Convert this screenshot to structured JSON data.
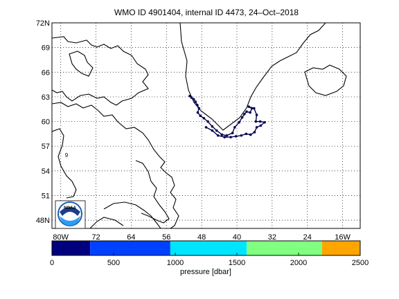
{
  "title": "WMO ID 4901404, internal ID 4473, 24–Oct–2018",
  "map": {
    "lat_ticks": [
      "72N",
      "69",
      "66",
      "63",
      "60",
      "57",
      "54",
      "51",
      "48N"
    ],
    "lon_ticks": [
      "80W",
      "72",
      "64",
      "56",
      "48",
      "40",
      "32",
      "24",
      "16W"
    ],
    "lat_values": [
      72,
      69,
      66,
      63,
      60,
      57,
      54,
      51,
      48
    ],
    "lon_values": [
      -80,
      -72,
      -64,
      -56,
      -48,
      -40,
      -32,
      -24,
      -16
    ],
    "lat_range": [
      47,
      72
    ],
    "lon_range": [
      -82,
      -12
    ],
    "grid": true,
    "marker_label": "9",
    "land_outline_color": "#000000",
    "track_color": "#000050"
  },
  "logo_text": "NOAA",
  "colorbar": {
    "label": "pressure [dbar]",
    "ticks": [
      "0",
      "500",
      "1000",
      "1500",
      "2000",
      "2500"
    ],
    "tick_values": [
      0,
      500,
      1000,
      1500,
      2000,
      2500
    ],
    "range": [
      0,
      2500
    ],
    "colors": [
      "#00007f",
      "#0040ff",
      "#00e5ff",
      "#80ff80",
      "#ffa500"
    ]
  },
  "chart_data": {
    "type": "scatter",
    "title": "WMO ID 4901404, internal ID 4473, 24–Oct–2018",
    "xlabel": "",
    "ylabel": "",
    "xlim": [
      -82,
      -12
    ],
    "ylim": [
      47,
      72
    ],
    "series": [
      {
        "values": [
          [
            -50.7,
            63.1
          ],
          [
            -50.3,
            62.9
          ],
          [
            -49.8,
            62.7
          ],
          [
            -49.4,
            62.4
          ],
          [
            -49.0,
            62.0
          ],
          [
            -48.6,
            61.6
          ],
          [
            -48.9,
            61.1
          ],
          [
            -48.3,
            60.7
          ],
          [
            -47.5,
            60.4
          ],
          [
            -46.6,
            60.0
          ],
          [
            -45.6,
            59.4
          ],
          [
            -44.6,
            58.9
          ],
          [
            -43.4,
            58.4
          ],
          [
            -42.3,
            58.3
          ],
          [
            -41.0,
            58.6
          ],
          [
            -40.5,
            59.3
          ],
          [
            -39.5,
            59.9
          ],
          [
            -38.8,
            60.5
          ],
          [
            -38.3,
            60.9
          ],
          [
            -37.8,
            61.2
          ],
          [
            -37.0,
            61.1
          ],
          [
            -36.6,
            61.6
          ],
          [
            -37.3,
            61.8
          ],
          [
            -36.1,
            61.6
          ],
          [
            -35.5,
            60.8
          ],
          [
            -35.7,
            60.0
          ],
          [
            -34.7,
            60.0
          ],
          [
            -33.7,
            59.9
          ],
          [
            -34.6,
            59.5
          ],
          [
            -35.5,
            59.3
          ],
          [
            -36.0,
            58.7
          ],
          [
            -36.9,
            58.4
          ],
          [
            -37.9,
            58.5
          ],
          [
            -39.0,
            58.3
          ],
          [
            -40.2,
            58.2
          ],
          [
            -41.4,
            58.1
          ],
          [
            -42.8,
            58.1
          ],
          [
            -44.3,
            58.3
          ],
          [
            -45.6,
            58.9
          ],
          [
            -47.0,
            59.3
          ]
        ]
      }
    ]
  }
}
